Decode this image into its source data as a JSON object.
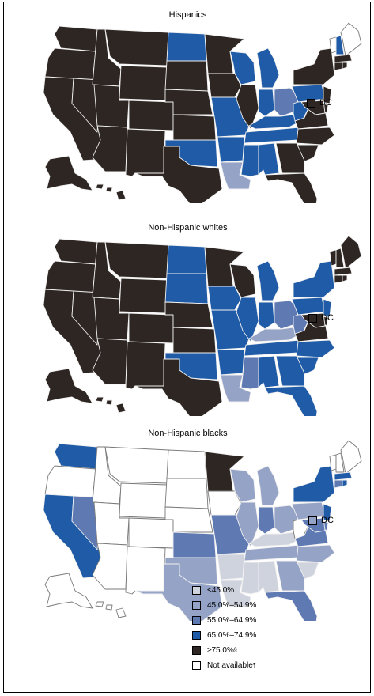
{
  "colors": {
    "lt45": "#cfd3dd",
    "45to55": "#95a3c6",
    "55to65": "#5f79b3",
    "65to75": "#1f5ba6",
    "ge75": "#2e2622",
    "na": "#ffffff",
    "border": "#f2f2f2"
  },
  "panels": [
    {
      "title": "Hispanics",
      "dc_label": "DC",
      "dc_category": "ge75",
      "states": {
        "WA": "ge75",
        "OR": "ge75",
        "CA": "ge75",
        "NV": "ge75",
        "ID": "ge75",
        "MT": "ge75",
        "WY": "ge75",
        "UT": "ge75",
        "AZ": "ge75",
        "CO": "ge75",
        "NM": "ge75",
        "ND": "65to75",
        "SD": "ge75",
        "NE": "ge75",
        "KS": "ge75",
        "OK": "65to75",
        "TX": "ge75",
        "MN": "ge75",
        "IA": "ge75",
        "MO": "65to75",
        "AR": "65to75",
        "LA": "45to55",
        "WI": "65to75",
        "IL": "ge75",
        "MI": "65to75",
        "IN": "65to75",
        "OH": "55to65",
        "KY": "65to75",
        "TN": "65to75",
        "MS": "65to75",
        "AL": "65to75",
        "WV": "65to75",
        "VA": "ge75",
        "NC": "ge75",
        "SC": "ge75",
        "GA": "ge75",
        "FL": "ge75",
        "PA": "65to75",
        "NY": "ge75",
        "VT": "na",
        "NH": "65to75",
        "ME": "na",
        "MA": "ge75",
        "CT": "ge75",
        "RI": "ge75",
        "NJ": "ge75",
        "DE": "ge75",
        "MD": "ge75",
        "AK": "ge75",
        "HI": "ge75"
      }
    },
    {
      "title": "Non-Hispanic whites",
      "dc_label": "DC",
      "dc_category": "ge75",
      "states": {
        "WA": "ge75",
        "OR": "ge75",
        "CA": "ge75",
        "NV": "ge75",
        "ID": "ge75",
        "MT": "ge75",
        "WY": "ge75",
        "UT": "ge75",
        "AZ": "ge75",
        "CO": "ge75",
        "NM": "ge75",
        "ND": "65to75",
        "SD": "65to75",
        "NE": "ge75",
        "KS": "ge75",
        "OK": "65to75",
        "TX": "ge75",
        "MN": "ge75",
        "IA": "65to75",
        "MO": "65to75",
        "AR": "65to75",
        "LA": "45to55",
        "WI": "ge75",
        "IL": "65to75",
        "MI": "65to75",
        "IN": "65to75",
        "OH": "55to65",
        "KY": "45to55",
        "TN": "65to75",
        "MS": "55to65",
        "AL": "65to75",
        "WV": "55to65",
        "VA": "ge75",
        "NC": "65to75",
        "SC": "65to75",
        "GA": "65to75",
        "FL": "65to75",
        "PA": "65to75",
        "NY": "65to75",
        "VT": "ge75",
        "NH": "ge75",
        "ME": "ge75",
        "MA": "ge75",
        "CT": "ge75",
        "RI": "ge75",
        "NJ": "65to75",
        "DE": "ge75",
        "MD": "ge75",
        "AK": "ge75",
        "HI": "ge75"
      }
    },
    {
      "title": "Non-Hispanic blacks",
      "dc_label": "DC",
      "dc_category": "45to55",
      "states": {
        "WA": "65to75",
        "OR": "na",
        "CA": "65to75",
        "NV": "55to65",
        "ID": "na",
        "MT": "na",
        "WY": "na",
        "UT": "na",
        "AZ": "na",
        "CO": "na",
        "NM": "na",
        "ND": "na",
        "SD": "na",
        "NE": "na",
        "KS": "55to65",
        "OK": "45to55",
        "TX": "45to55",
        "MN": "ge75",
        "IA": "na",
        "MO": "55to65",
        "AR": "lt45",
        "LA": "lt45",
        "WI": "45to55",
        "IL": "45to55",
        "MI": "45to55",
        "IN": "55to65",
        "OH": "45to55",
        "KY": "lt45",
        "TN": "45to55",
        "MS": "lt45",
        "AL": "lt45",
        "WV": "na",
        "VA": "55to65",
        "NC": "45to55",
        "SC": "lt45",
        "GA": "45to55",
        "FL": "55to65",
        "PA": "45to55",
        "NY": "65to75",
        "VT": "na",
        "NH": "na",
        "ME": "na",
        "MA": "65to75",
        "CT": "55to65",
        "RI": "65to75",
        "NJ": "65to75",
        "DE": "55to65",
        "MD": "55to65",
        "AK": "na",
        "HI": "na"
      }
    }
  ],
  "legend": [
    {
      "key": "lt45",
      "label": "<45.0%",
      "mark": ""
    },
    {
      "key": "45to55",
      "label": "45.0%–54.9%",
      "mark": ""
    },
    {
      "key": "55to65",
      "label": "55.0%–64.9%",
      "mark": ""
    },
    {
      "key": "65to75",
      "label": "65.0%–74.9%",
      "mark": ""
    },
    {
      "key": "ge75",
      "label": "≥75.0%",
      "mark": "§"
    },
    {
      "key": "na",
      "label": "Not available",
      "mark": "¶"
    }
  ]
}
